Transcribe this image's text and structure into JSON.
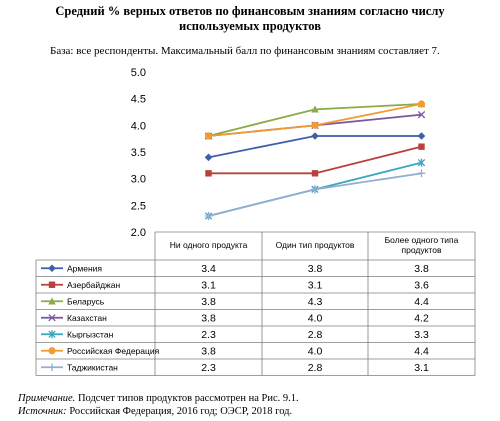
{
  "header": {
    "title_line1": "Средний % верных ответов по финансовым знаниям согласно числу",
    "title_line2": "используемых продуктов",
    "base": "База: все респонденты. Максимальный балл по финансовым знаниям составляет 7."
  },
  "notes": {
    "note_label": "Примечание.",
    "note_text": " Подсчет типов продуктов рассмотрен на Рис. 9.1.",
    "source_label": "Источник:",
    "source_text": " Российская Федерация, 2016 год; ОЭСР, 2018 год."
  },
  "chart_data": {
    "type": "line",
    "categories": [
      "Ни одного продукта",
      "Один тип продуктов",
      "Более одного типа продуктов"
    ],
    "y_ticks": [
      "5.0",
      "4.5",
      "4.0",
      "3.5",
      "3.0",
      "2.5",
      "2.0"
    ],
    "ylim": [
      2.0,
      5.0
    ],
    "grid": false,
    "legend": "table-left",
    "series": [
      {
        "name": "Армения",
        "values": [
          3.4,
          3.8,
          3.8
        ],
        "labels": [
          "3.4",
          "3.8",
          "3.8"
        ],
        "color": "#3f5fa8",
        "marker": "diamond"
      },
      {
        "name": "Азербайджан",
        "values": [
          3.1,
          3.1,
          3.6
        ],
        "labels": [
          "3.1",
          "3.1",
          "3.6"
        ],
        "color": "#b8413d",
        "marker": "square"
      },
      {
        "name": "Беларусь",
        "values": [
          3.8,
          4.3,
          4.4
        ],
        "labels": [
          "3.8",
          "4.3",
          "4.4"
        ],
        "color": "#8aab45",
        "marker": "triangle"
      },
      {
        "name": "Казахстан",
        "values": [
          3.8,
          4.0,
          4.2
        ],
        "labels": [
          "3.8",
          "4.0",
          "4.2"
        ],
        "color": "#7a56a0",
        "marker": "x"
      },
      {
        "name": "Кыргызстан",
        "values": [
          2.3,
          2.8,
          3.3
        ],
        "labels": [
          "2.3",
          "2.8",
          "3.3"
        ],
        "color": "#3aa6c2",
        "marker": "star"
      },
      {
        "name": "Российская Федерация",
        "values": [
          3.8,
          4.0,
          4.4
        ],
        "labels": [
          "3.8",
          "4.0",
          "4.4"
        ],
        "color": "#f39a33",
        "marker": "circle"
      },
      {
        "name": "Таджикистан",
        "values": [
          2.3,
          2.8,
          3.1
        ],
        "labels": [
          "2.3",
          "2.8",
          "3.1"
        ],
        "color": "#92aed3",
        "marker": "plus"
      }
    ]
  }
}
